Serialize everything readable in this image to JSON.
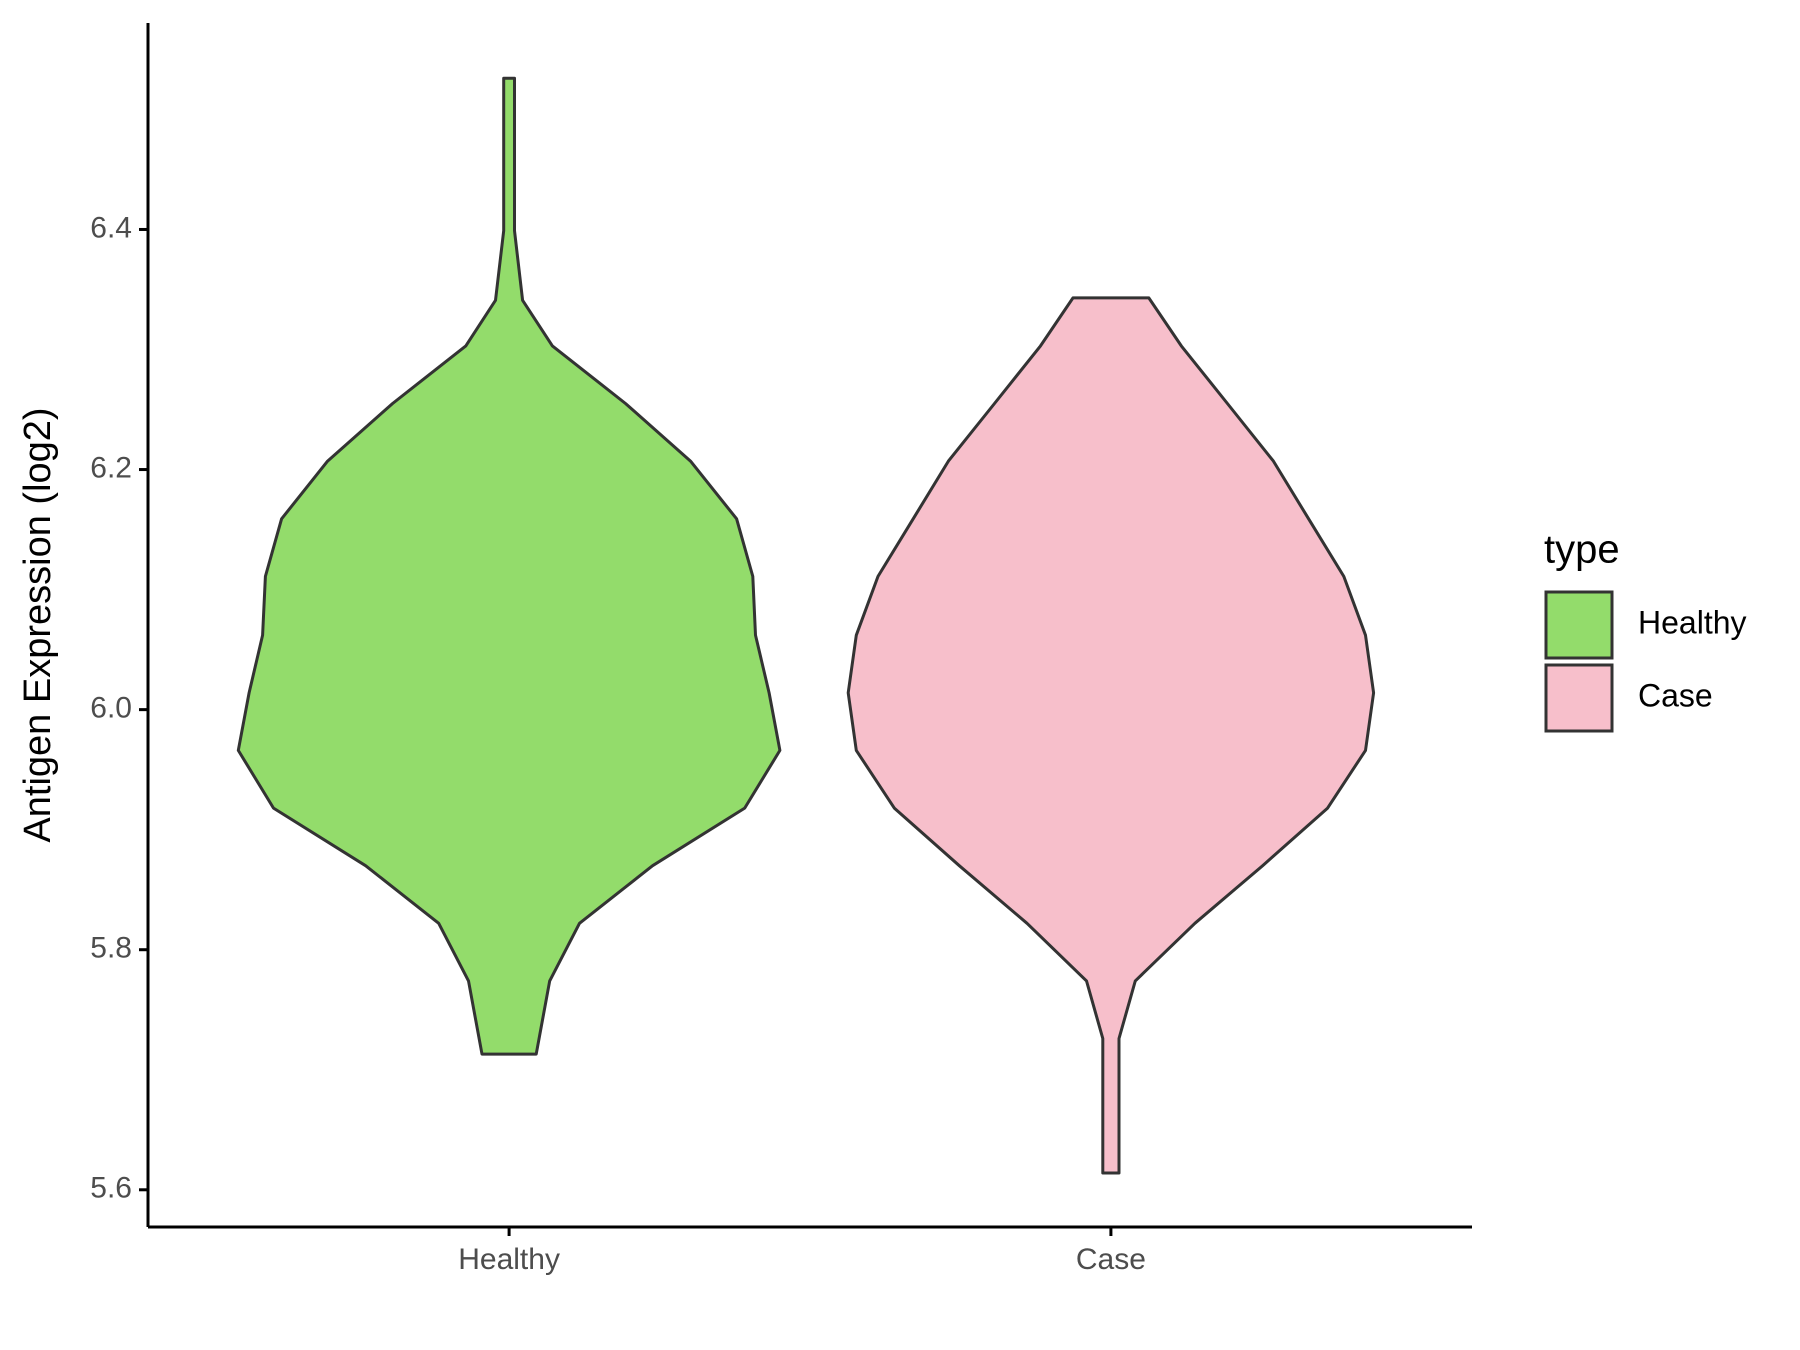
{
  "chart_data": {
    "type": "violin",
    "y_label": "Antigen Expression (log2)",
    "categories": [
      "Healthy",
      "Case"
    ],
    "legend_title": "type",
    "legend_position": "right",
    "series": [
      {
        "name": "Healthy",
        "color": "#93dc6b",
        "y": [
          6.526,
          6.399,
          6.341,
          6.303,
          6.255,
          6.207,
          6.159,
          6.111,
          6.062,
          6.014,
          5.966,
          5.918,
          5.87,
          5.822,
          5.774,
          5.713
        ],
        "density": [
          0.02,
          0.02,
          0.05,
          0.16,
          0.43,
          0.67,
          0.84,
          0.9,
          0.91,
          0.96,
          1,
          0.87,
          0.53,
          0.26,
          0.15,
          0.1
        ]
      },
      {
        "name": "Case",
        "color": "#f7bfcb",
        "y": [
          6.343,
          6.303,
          6.255,
          6.207,
          6.159,
          6.111,
          6.062,
          6.014,
          5.966,
          5.918,
          5.87,
          5.822,
          5.774,
          5.726,
          5.614
        ],
        "density": [
          0.14,
          0.26,
          0.43,
          0.6,
          0.73,
          0.86,
          0.94,
          0.97,
          0.94,
          0.8,
          0.56,
          0.31,
          0.09,
          0.03,
          0.03
        ]
      }
    ],
    "ylim": [
      5.569,
      6.572
    ],
    "yticks": [
      {
        "value": 5.6,
        "label": "5.6"
      },
      {
        "value": 5.8,
        "label": "5.8"
      },
      {
        "value": 6.0,
        "label": "6.0"
      },
      {
        "value": 6.2,
        "label": "6.2"
      },
      {
        "value": 6.4,
        "label": "6.4"
      }
    ],
    "grid": false
  }
}
